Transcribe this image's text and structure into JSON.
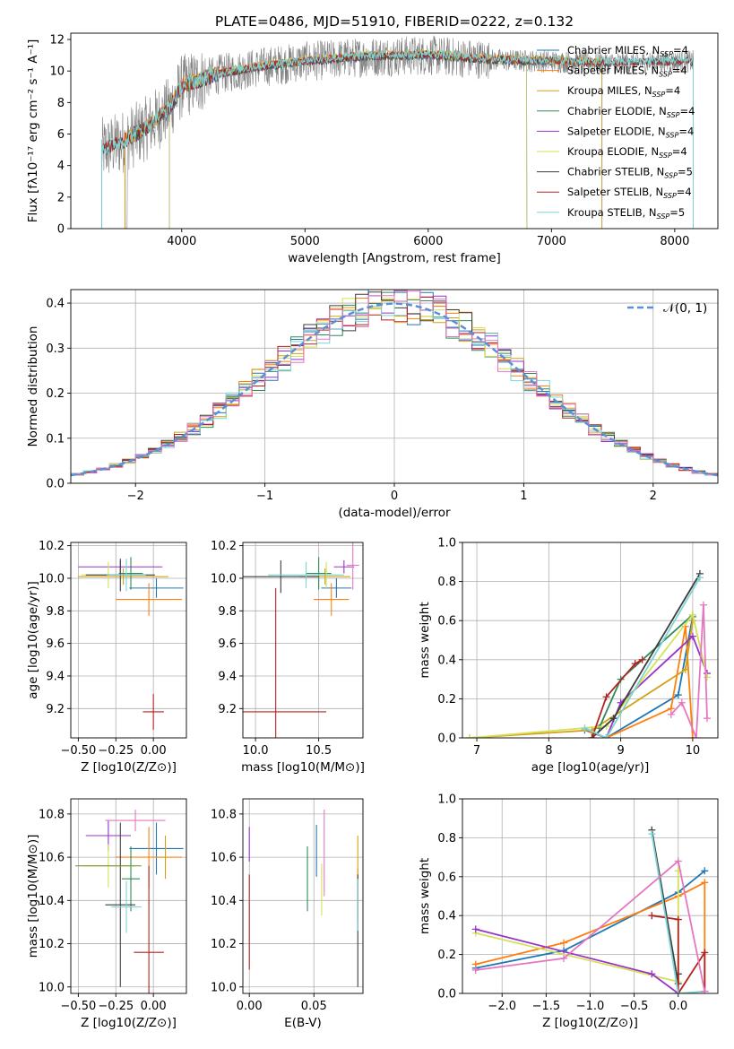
{
  "figure_title": "PLATE=0486, MJD=51910, FIBERID=0222, z=0.132",
  "colors": {
    "Chabrier MILES": "#1f77b4",
    "Salpeter MILES": "#ff7f0e",
    "Kroupa MILES": "#d4a017",
    "Chabrier ELODIE": "#2e8b57",
    "Salpeter ELODIE": "#9932cc",
    "Kroupa ELODIE": "#d4e157",
    "Chabrier STELIB": "#3d3d3d",
    "Salpeter STELIB": "#b22222",
    "Kroupa STELIB": "#7fd3d3",
    "spectrum_data": "#808080",
    "normal_curve": "#5b8fd8"
  },
  "chart_data": [
    {
      "type": "line",
      "xlabel": "wavelength [Angstrom, rest frame]",
      "ylabel": "Flux [fλ10⁻¹⁷ erg cm⁻² s⁻¹ A⁻¹]",
      "xlim": [
        3100,
        8350
      ],
      "ylim": [
        0,
        12.4
      ],
      "xticks": [
        4000,
        5000,
        6000,
        7000,
        8000
      ],
      "yticks": [
        0,
        2,
        4,
        6,
        8,
        10,
        12
      ],
      "legend": [
        "Chabrier MILES, N_SSP=4",
        "Salpeter MILES, N_SSP=4",
        "Kroupa MILES, N_SSP=4",
        "Chabrier ELODIE, N_SSP=4",
        "Salpeter ELODIE, N_SSP=4",
        "Kroupa ELODIE, N_SSP=4",
        "Chabrier STELIB, N_SSP=5",
        "Salpeter STELIB, N_SSP=4",
        "Kroupa STELIB, N_SSP=5"
      ],
      "legend_placement": "right",
      "continuum": {
        "x": [
          3350,
          3500,
          3700,
          3900,
          4000,
          4300,
          4600,
          5000,
          5500,
          6000,
          6500,
          7000,
          7500,
          8000,
          8150
        ],
        "y": [
          5.0,
          5.4,
          6.3,
          7.6,
          9.0,
          9.8,
          10.2,
          10.6,
          10.9,
          11.0,
          10.7,
          10.6,
          10.5,
          10.6,
          10.6
        ]
      },
      "grid": false
    },
    {
      "type": "line",
      "xlabel": "(data-model)/error",
      "ylabel": "Normed distribution",
      "xlim": [
        -2.5,
        2.5
      ],
      "ylim": [
        0,
        0.43
      ],
      "xticks": [
        -2,
        -1,
        0,
        1,
        2
      ],
      "yticks": [
        0.0,
        0.1,
        0.2,
        0.3,
        0.4
      ],
      "legend": [
        "𝒩(0, 1)"
      ],
      "legend_placement": "top-right",
      "histogram_bins": {
        "edges_from": -2.5,
        "edges_to": 2.5,
        "n_bins": 50
      },
      "grid": true
    },
    {
      "type": "scatter",
      "xlabel": "Z [log10(Z/Z⊙)]",
      "ylabel": "age  [log10(age/yr)]",
      "xlim": [
        -0.55,
        0.22
      ],
      "ylim": [
        9.02,
        10.22
      ],
      "xticks": [
        -0.5,
        -0.25,
        0.0
      ],
      "yticks": [
        9.2,
        9.4,
        9.6,
        9.8,
        10.0,
        10.2
      ],
      "points": [
        {
          "model": "Chabrier MILES",
          "x": 0.02,
          "xerr": 0.18,
          "y": 9.94,
          "yerr": 0.06
        },
        {
          "model": "Salpeter MILES",
          "x": -0.03,
          "xerr": 0.22,
          "y": 9.87,
          "yerr": 0.1
        },
        {
          "model": "Kroupa MILES",
          "x": -0.2,
          "xerr": 0.3,
          "y": 10.01,
          "yerr": 0.05
        },
        {
          "model": "Chabrier ELODIE",
          "x": -0.15,
          "xerr": 0.08,
          "y": 10.03,
          "yerr": 0.1
        },
        {
          "model": "Salpeter ELODIE",
          "x": -0.22,
          "xerr": 0.28,
          "y": 10.07,
          "yerr": 0.04
        },
        {
          "model": "Kroupa ELODIE",
          "x": -0.3,
          "xerr": 0.18,
          "y": 10.02,
          "yerr": 0.08
        },
        {
          "model": "Chabrier STELIB",
          "x": -0.22,
          "xerr": 0.23,
          "y": 10.02,
          "yerr": 0.1
        },
        {
          "model": "Salpeter STELIB",
          "x": 0.0,
          "xerr": 0.07,
          "y": 9.18,
          "yerr": 0.11
        },
        {
          "model": "Kroupa STELIB",
          "x": -0.18,
          "xerr": 0.13,
          "y": 10.02,
          "yerr": 0.1
        }
      ],
      "grid": true
    },
    {
      "type": "scatter",
      "xlabel": "mass [log10(M/M⊙)]",
      "ylabel": "",
      "xlim": [
        9.9,
        10.85
      ],
      "ylim": [
        9.02,
        10.22
      ],
      "xticks": [
        10.0,
        10.5
      ],
      "yticks": [
        9.2,
        9.4,
        9.6,
        9.8,
        10.0,
        10.2
      ],
      "points": [
        {
          "model": "Chabrier MILES",
          "x": 10.64,
          "xerr": 0.12,
          "y": 9.94,
          "yerr": 0.06
        },
        {
          "model": "Salpeter MILES",
          "x": 10.6,
          "xerr": 0.14,
          "y": 9.87,
          "yerr": 0.1
        },
        {
          "model": "Kroupa MILES",
          "x": 10.55,
          "xerr": 0.2,
          "y": 10.01,
          "yerr": 0.05
        },
        {
          "model": "Chabrier ELODIE",
          "x": 10.5,
          "xerr": 0.1,
          "y": 10.03,
          "yerr": 0.1
        },
        {
          "model": "Salpeter ELODIE",
          "x": 10.7,
          "xerr": 0.08,
          "y": 10.07,
          "yerr": 0.04
        },
        {
          "model": "Kroupa ELODIE",
          "x": 10.56,
          "xerr": 0.1,
          "y": 10.02,
          "yerr": 0.08
        },
        {
          "model": "Chabrier STELIB",
          "x": 10.2,
          "xerr": 0.3,
          "y": 10.01,
          "yerr": 0.1
        },
        {
          "model": "Salpeter STELIB",
          "x": 10.16,
          "xerr": 0.4,
          "y": 9.18,
          "yerr": 0.76
        },
        {
          "model": "Kroupa STELIB",
          "x": 10.4,
          "xerr": 0.3,
          "y": 10.02,
          "yerr": 0.08
        },
        {
          "model": "Salpeter MILES extra",
          "x": 10.77,
          "xerr": 0.05,
          "y": 10.08,
          "yerr": 0.15
        }
      ],
      "grid": true
    },
    {
      "type": "line",
      "xlabel": "age  [log10(age/yr)]",
      "ylabel": "mass weight",
      "xlim": [
        6.8,
        10.35
      ],
      "ylim": [
        0,
        1.0
      ],
      "xticks": [
        7,
        8,
        9,
        10
      ],
      "yticks": [
        0.0,
        0.2,
        0.4,
        0.6,
        0.8,
        1.0
      ],
      "series": [
        {
          "model": "Chabrier MILES",
          "x": [
            8.5,
            8.8,
            9.8,
            10.0
          ],
          "y": [
            0.04,
            0.0,
            0.22,
            0.62
          ]
        },
        {
          "model": "Salpeter MILES",
          "x": [
            8.6,
            8.8,
            9.7,
            9.9,
            10.0
          ],
          "y": [
            0.03,
            0.0,
            0.15,
            0.57,
            0.0
          ]
        },
        {
          "model": "Kroupa MILES",
          "x": [
            6.9,
            8.6,
            9.9,
            10.0
          ],
          "y": [
            0.0,
            0.04,
            0.35,
            0.6
          ]
        },
        {
          "model": "Chabrier ELODIE",
          "x": [
            8.7,
            9.0,
            10.0
          ],
          "y": [
            0.05,
            0.3,
            0.63
          ]
        },
        {
          "model": "Salpeter ELODIE",
          "x": [
            8.8,
            9.0,
            10.0,
            10.2
          ],
          "y": [
            0.0,
            0.18,
            0.52,
            0.33
          ]
        },
        {
          "model": "Kroupa ELODIE",
          "x": [
            6.9,
            8.8,
            10.0,
            10.2
          ],
          "y": [
            0.0,
            0.06,
            0.63,
            0.31
          ]
        },
        {
          "model": "Chabrier STELIB",
          "x": [
            8.6,
            8.9,
            10.1
          ],
          "y": [
            0.0,
            0.1,
            0.84
          ]
        },
        {
          "model": "Salpeter STELIB",
          "x": [
            8.6,
            8.8,
            9.2,
            9.3
          ],
          "y": [
            0.0,
            0.21,
            0.38,
            0.4
          ]
        },
        {
          "model": "Kroupa STELIB",
          "x": [
            8.5,
            8.8,
            10.1
          ],
          "y": [
            0.05,
            0.0,
            0.82
          ]
        },
        {
          "model": "Salpeter MILES pink",
          "x": [
            9.7,
            9.85,
            10.05,
            10.15,
            10.2
          ],
          "y": [
            0.12,
            0.18,
            0.0,
            0.68,
            0.1
          ]
        }
      ],
      "grid": true
    },
    {
      "type": "scatter",
      "xlabel": "Z [log10(Z/Z⊙)]",
      "ylabel": "mass [log10(M/M⊙)]",
      "xlim": [
        -0.55,
        0.22
      ],
      "ylim": [
        9.97,
        10.87
      ],
      "xticks": [
        -0.5,
        -0.25,
        0.0
      ],
      "yticks": [
        10.0,
        10.2,
        10.4,
        10.6,
        10.8
      ],
      "points": [
        {
          "model": "Chabrier MILES",
          "x": 0.02,
          "xerr": 0.18,
          "y": 10.64,
          "yerr": 0.12
        },
        {
          "model": "Salpeter MILES",
          "x": -0.03,
          "xerr": 0.22,
          "y": 10.6,
          "yerr": 0.14
        },
        {
          "model": "Kroupa MILES",
          "x": 0.08,
          "xerr": 0.03,
          "y": 10.6,
          "yerr": 0.1
        },
        {
          "model": "Chabrier ELODIE",
          "x": -0.15,
          "xerr": 0.06,
          "y": 10.5,
          "yerr": 0.15
        },
        {
          "model": "Salpeter ELODIE",
          "x": -0.3,
          "xerr": 0.15,
          "y": 10.7,
          "yerr": 0.07
        },
        {
          "model": "Kroupa ELODIE",
          "x": -0.3,
          "xerr": 0.18,
          "y": 10.56,
          "yerr": 0.1
        },
        {
          "model": "Chabrier STELIB",
          "x": -0.22,
          "xerr": 0.1,
          "y": 10.38,
          "yerr": 0.38
        },
        {
          "model": "Salpeter STELIB",
          "x": -0.03,
          "xerr": 0.1,
          "y": 10.16,
          "yerr": 0.4
        },
        {
          "model": "Kroupa STELIB",
          "x": -0.18,
          "xerr": 0.1,
          "y": 10.37,
          "yerr": 0.12
        },
        {
          "model": "pink",
          "x": -0.12,
          "xerr": 0.2,
          "y": 10.77,
          "yerr": 0.05
        },
        {
          "model": "wide",
          "x": -0.3,
          "xerr": 0.22,
          "y": 10.56,
          "yerr": 0.0
        }
      ],
      "grid": true
    },
    {
      "type": "scatter",
      "xlabel": "E(B-V)",
      "ylabel": "",
      "xlim": [
        -0.005,
        0.088
      ],
      "ylim": [
        9.97,
        10.87
      ],
      "xticks": [
        0.0,
        0.05
      ],
      "yticks": [
        10.0,
        10.2,
        10.4,
        10.6,
        10.8
      ],
      "points": [
        {
          "model": "Chabrier MILES",
          "x": 0.052,
          "yerr": 0.12,
          "y": 10.63
        },
        {
          "model": "Salpeter MILES",
          "x": 0.084,
          "yerr": 0.12,
          "y": 10.43
        },
        {
          "model": "Kroupa MILES",
          "x": 0.084,
          "yerr": 0.1,
          "y": 10.6
        },
        {
          "model": "Chabrier ELODIE",
          "x": 0.045,
          "yerr": 0.15,
          "y": 10.5
        },
        {
          "model": "Salpeter ELODIE",
          "x": 0.0,
          "yerr": 0.08,
          "y": 10.66
        },
        {
          "model": "Kroupa ELODIE",
          "x": 0.056,
          "yerr": 0.12,
          "y": 10.45
        },
        {
          "model": "Chabrier STELIB",
          "x": 0.084,
          "yerr": 0.26,
          "y": 10.26
        },
        {
          "model": "Salpeter STELIB",
          "x": 0.0,
          "yerr": 0.22,
          "y": 10.3
        },
        {
          "model": "Kroupa STELIB",
          "x": 0.084,
          "yerr": 0.12,
          "y": 10.38
        },
        {
          "model": "pink",
          "x": 0.058,
          "yerr": 0.2,
          "y": 10.62
        }
      ],
      "grid": true
    },
    {
      "type": "line",
      "xlabel": "Z [log10(Z/Z⊙)]",
      "ylabel": "mass weight",
      "xlim": [
        -2.45,
        0.45
      ],
      "ylim": [
        0,
        1.0
      ],
      "xticks": [
        -2.0,
        -1.5,
        -1.0,
        -0.5,
        0.0
      ],
      "yticks": [
        0.0,
        0.2,
        0.4,
        0.6,
        0.8,
        1.0
      ],
      "series": [
        {
          "model": "Chabrier MILES",
          "x": [
            -2.3,
            -1.3,
            0.0,
            0.3
          ],
          "y": [
            0.13,
            0.22,
            0.52,
            0.63
          ]
        },
        {
          "model": "Salpeter MILES",
          "x": [
            -2.3,
            -1.3,
            0.0,
            0.3,
            0.3
          ],
          "y": [
            0.15,
            0.26,
            0.5,
            0.57,
            0.01
          ]
        },
        {
          "model": "Kroupa ELODIE",
          "x": [
            -2.3,
            0.0,
            0.0
          ],
          "y": [
            0.31,
            0.06,
            0.63
          ]
        },
        {
          "model": "Salpeter ELODIE",
          "x": [
            -2.3,
            -0.3,
            0.0
          ],
          "y": [
            0.33,
            0.1,
            0.0
          ]
        },
        {
          "model": "Chabrier STELIB",
          "x": [
            -0.3,
            0.0,
            0.0
          ],
          "y": [
            0.84,
            0.05,
            0.1
          ]
        },
        {
          "model": "Salpeter STELIB",
          "x": [
            -0.3,
            0.0,
            0.0,
            0.3,
            0.3
          ],
          "y": [
            0.4,
            0.38,
            0.0,
            0.21,
            0.01
          ]
        },
        {
          "model": "Kroupa STELIB",
          "x": [
            -0.3,
            0.0,
            0.3
          ],
          "y": [
            0.82,
            0.0,
            0.01
          ]
        },
        {
          "model": "Salpeter MILES pink",
          "x": [
            -2.3,
            -1.3,
            0.0,
            0.3
          ],
          "y": [
            0.12,
            0.18,
            0.68,
            0.01
          ]
        }
      ],
      "grid": true
    }
  ]
}
